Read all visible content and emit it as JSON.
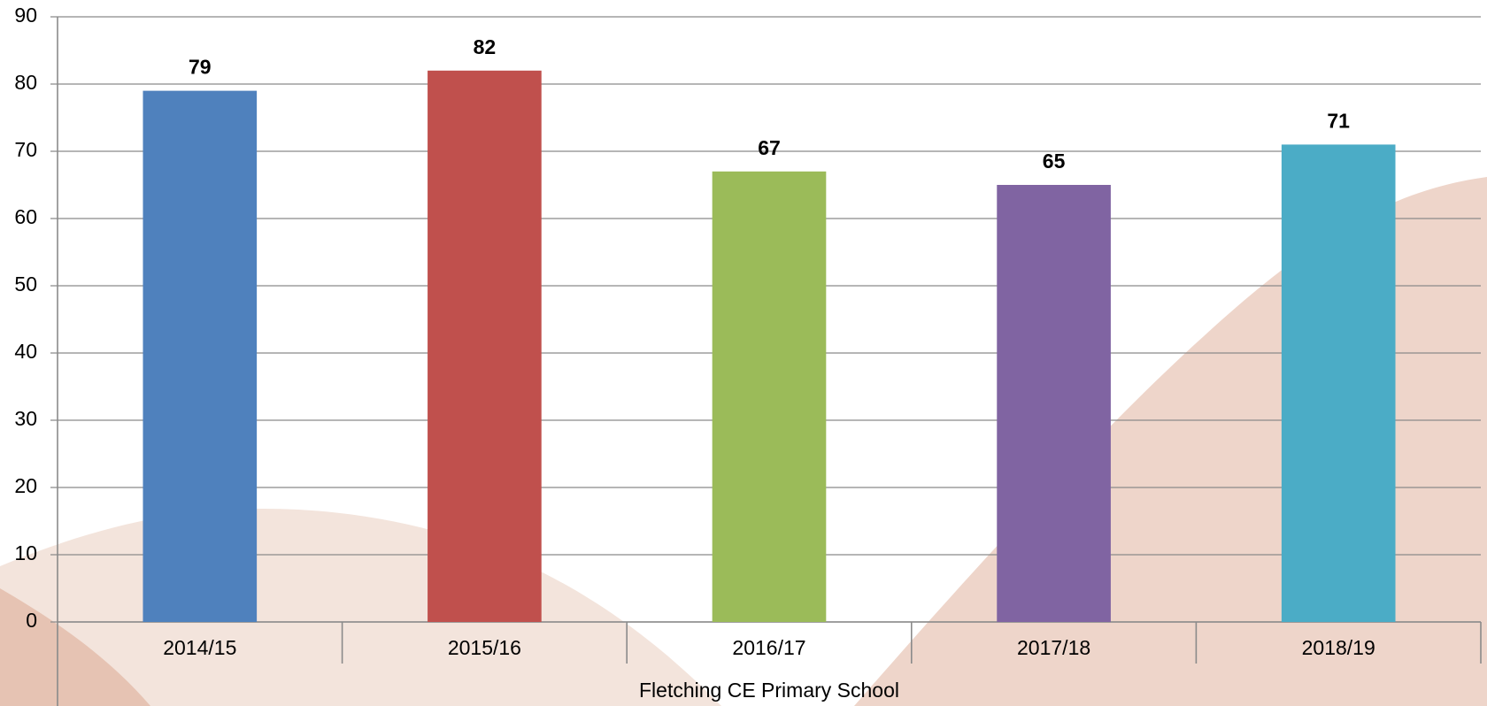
{
  "chart_data": {
    "type": "bar",
    "x_label": "Fletching CE Primary School",
    "categories": [
      "2014/15",
      "2015/16",
      "2016/17",
      "2017/18",
      "2018/19"
    ],
    "values": [
      79,
      82,
      67,
      65,
      71
    ],
    "colors": [
      "#4f81bd",
      "#c0504d",
      "#9bbb59",
      "#8064a2",
      "#4bacc6"
    ],
    "ylim": [
      0,
      90
    ],
    "yticks": [
      0,
      10,
      20,
      30,
      40,
      50,
      60,
      70,
      80,
      90
    ],
    "grid": true
  }
}
